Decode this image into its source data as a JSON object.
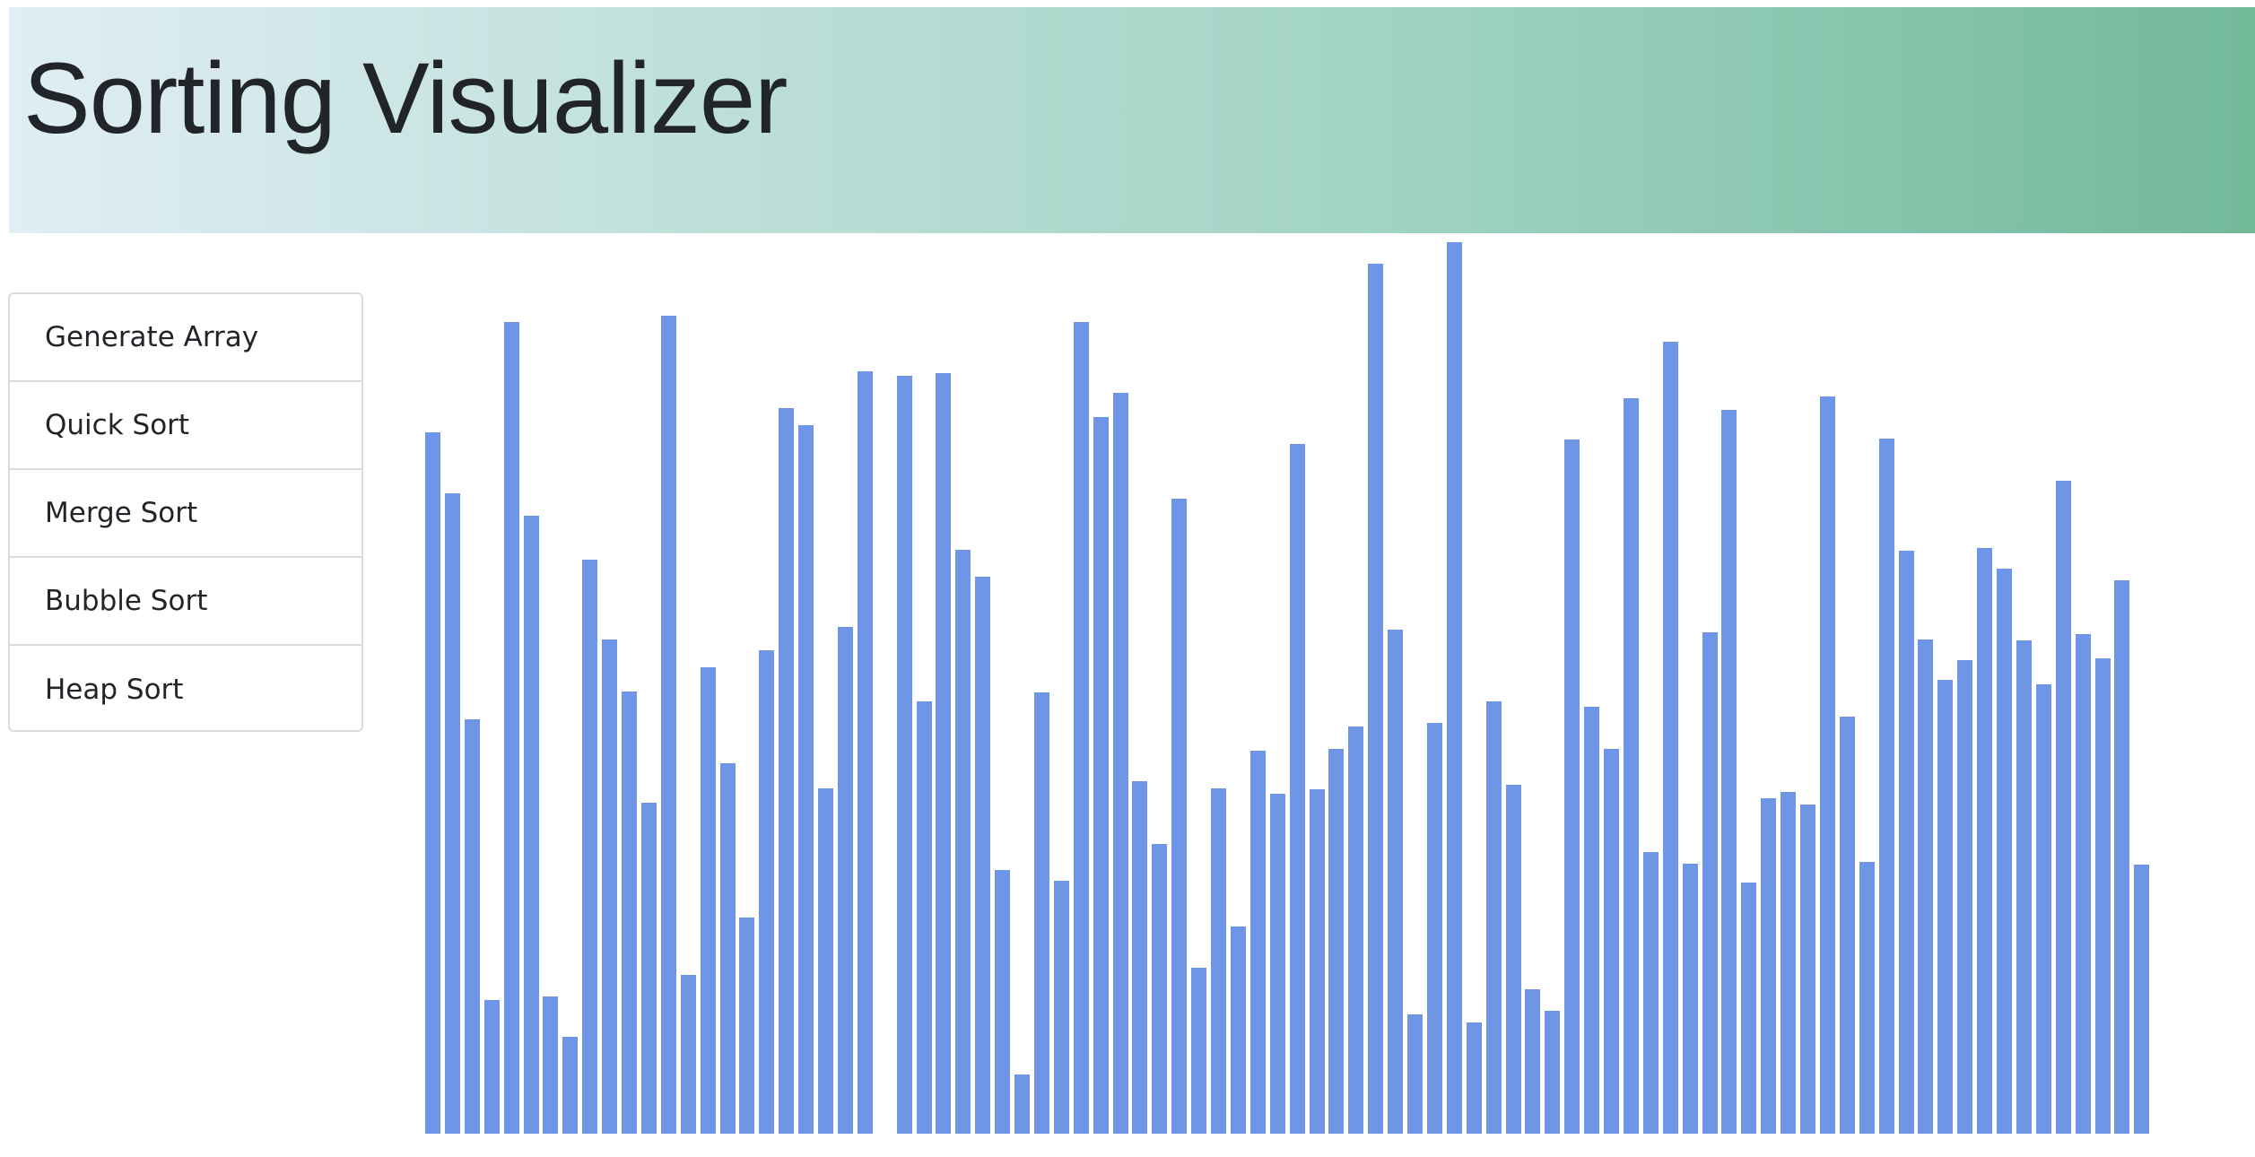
{
  "header": {
    "title": "Sorting Visualizer"
  },
  "menu": {
    "items": [
      {
        "label": "Generate Array",
        "name": "generate-array-button"
      },
      {
        "label": "Quick Sort",
        "name": "quick-sort-button"
      },
      {
        "label": "Merge Sort",
        "name": "merge-sort-button"
      },
      {
        "label": "Bubble Sort",
        "name": "bubble-sort-button"
      },
      {
        "label": "Heap Sort",
        "name": "heap-sort-button"
      }
    ]
  },
  "colors": {
    "bar": "#6f96e6",
    "header_start": "#e0eef5",
    "header_end": "#72b99a"
  },
  "array": {
    "max_value": 100,
    "values": [
      78.7,
      71.8,
      46.5,
      15.0,
      91.0,
      69.3,
      15.4,
      10.9,
      64.4,
      55.4,
      49.6,
      37.1,
      91.8,
      17.8,
      52.3,
      41.6,
      24.2,
      54.2,
      81.4,
      79.5,
      38.7,
      56.8,
      85.5,
      0,
      85.0,
      48.5,
      85.3,
      65.5,
      62.5,
      29.6,
      6.6,
      49.5,
      28.4,
      91.0,
      80.4,
      83.1,
      39.5,
      32.5,
      71.2,
      18.6,
      38.7,
      23.2,
      43.0,
      38.1,
      77.4,
      38.6,
      43.2,
      45.7,
      97.6,
      56.5,
      13.4,
      46.1,
      100.0,
      12.5,
      48.5,
      39.1,
      16.2,
      13.8,
      77.9,
      47.9,
      43.2,
      82.5,
      31.6,
      88.8,
      30.3,
      56.2,
      81.2,
      28.2,
      37.6,
      38.3,
      36.9,
      82.7,
      46.8,
      30.5,
      78.0,
      65.4,
      55.4,
      50.9,
      53.1,
      65.7,
      63.4,
      55.3,
      50.4,
      73.2,
      56.0,
      53.3,
      62.1,
      30.2
    ]
  }
}
